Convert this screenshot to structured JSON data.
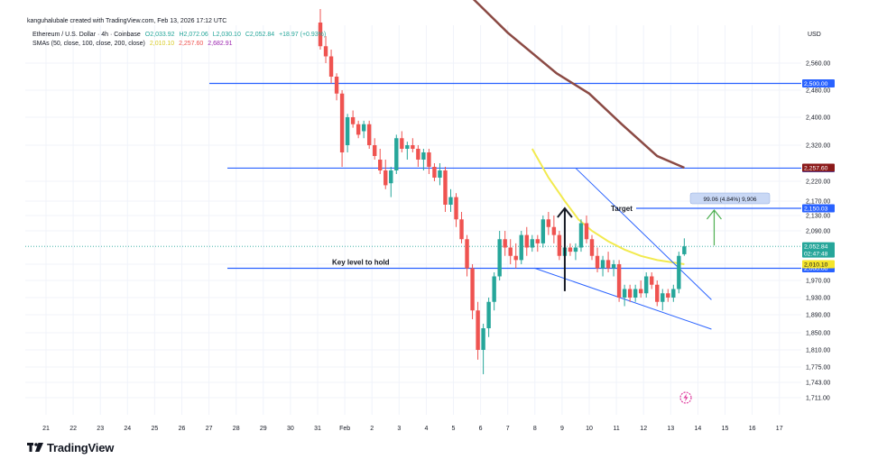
{
  "credit": "kanguhalubale created with TradingView.com, Feb 13, 2026 17:12 UTC",
  "legend": {
    "symbol": "Ethereum / U.S. Dollar · 4h · Coinbase",
    "ohlc": {
      "o": "O2,033.92",
      "h": "H2,072.06",
      "l": "L2,030.10",
      "c": "C2,052.84",
      "chg": "+18.97 (+0.93%)"
    },
    "sma_label": "SMAs (50, close, 100, close, 200, close)",
    "sma_values": [
      "2,010.10",
      "2,257.60",
      "2,682.91"
    ]
  },
  "currency": "USD",
  "brand": "TradingView",
  "colors": {
    "up": "#26a69a",
    "down": "#ef5350",
    "sma50": "#f2ea4f",
    "sma200": "#8b4a44",
    "level_line": "#2962ff",
    "target_arrow": "#4caf50",
    "price_tag": "#26a69a",
    "sma50_tag": "#f5e52b",
    "sma100_tag": "#8b1a1a",
    "level_tag": "#2962ff"
  },
  "chart_data": {
    "type": "candlestick",
    "x_ticks": [
      "21",
      "22",
      "23",
      "24",
      "25",
      "26",
      "27",
      "28",
      "29",
      "30",
      "31",
      "Feb",
      "2",
      "3",
      "4",
      "5",
      "6",
      "7",
      "8",
      "9",
      "10",
      "11",
      "12",
      "13",
      "14",
      "15",
      "16",
      "17"
    ],
    "y_ticks": [
      "2,560.00",
      "2,480.00",
      "2,400.00",
      "2,320.00",
      "2,220.00",
      "2,170.00",
      "2,130.00",
      "2,090.00",
      "2,010.00",
      "1,970.00",
      "1,930.00",
      "1,890.00",
      "1,850.00",
      "1,810.00",
      "1,775.00",
      "1,743.00",
      "1,711.00"
    ],
    "y_tick_values": [
      2560,
      2480,
      2400,
      2320,
      2220,
      2170,
      2130,
      2090,
      2010,
      1970,
      1930,
      1890,
      1850,
      1810,
      1775,
      1743,
      1711
    ],
    "horizontal_levels": [
      {
        "value": 2500,
        "label": "2,500.00"
      },
      {
        "value": 2256.4,
        "label": "2,256.40"
      },
      {
        "value": 2150.03,
        "label": "2,150.03",
        "annotation": "Target"
      },
      {
        "value": 2000,
        "label": "2,000.00",
        "annotation": "Key level to hold"
      }
    ],
    "price_tags": [
      {
        "value": 2257.6,
        "label": "2,257.60",
        "kind": "sma100"
      },
      {
        "value": 2052.84,
        "label": "2,052.84",
        "sublabel": "02:47:48",
        "kind": "price"
      },
      {
        "value": 2010.1,
        "label": "2,010.10",
        "kind": "sma50"
      }
    ],
    "measure_label": "99.06 (4.84%) 9,906",
    "candles_ohlc": [
      [
        0.1,
        2680,
        2720,
        2600,
        2610
      ],
      [
        0.3,
        2610,
        2640,
        2560,
        2580
      ],
      [
        0.5,
        2580,
        2600,
        2500,
        2520
      ],
      [
        0.7,
        2520,
        2530,
        2450,
        2470
      ],
      [
        0.9,
        2470,
        2480,
        2260,
        2300
      ],
      [
        1.1,
        2320,
        2410,
        2300,
        2400
      ],
      [
        1.3,
        2400,
        2420,
        2370,
        2380
      ],
      [
        1.5,
        2380,
        2390,
        2340,
        2350
      ],
      [
        1.7,
        2360,
        2390,
        2340,
        2380
      ],
      [
        1.9,
        2380,
        2390,
        2310,
        2320
      ],
      [
        2.1,
        2320,
        2340,
        2280,
        2290
      ],
      [
        2.3,
        2280,
        2310,
        2240,
        2250
      ],
      [
        2.5,
        2250,
        2280,
        2200,
        2210
      ],
      [
        2.7,
        2215,
        2260,
        2180,
        2250
      ],
      [
        2.9,
        2250,
        2350,
        2240,
        2340
      ],
      [
        3.1,
        2340,
        2360,
        2300,
        2310
      ],
      [
        3.3,
        2310,
        2330,
        2280,
        2320
      ],
      [
        3.5,
        2320,
        2340,
        2300,
        2310
      ],
      [
        3.7,
        2310,
        2320,
        2260,
        2280
      ],
      [
        3.9,
        2280,
        2310,
        2250,
        2300
      ],
      [
        4.1,
        2300,
        2310,
        2240,
        2260
      ],
      [
        4.3,
        2260,
        2270,
        2220,
        2230
      ],
      [
        4.5,
        2230,
        2270,
        2210,
        2250
      ],
      [
        4.7,
        2250,
        2260,
        2140,
        2160
      ],
      [
        4.9,
        2160,
        2200,
        2140,
        2180
      ],
      [
        5.1,
        2180,
        2190,
        2100,
        2120
      ],
      [
        5.3,
        2120,
        2140,
        2060,
        2070
      ],
      [
        5.5,
        2070,
        2080,
        1980,
        2000
      ],
      [
        5.7,
        2000,
        2010,
        1880,
        1900
      ],
      [
        5.9,
        1900,
        1920,
        1790,
        1810
      ],
      [
        6.1,
        1810,
        1870,
        1760,
        1860
      ],
      [
        6.3,
        1860,
        1930,
        1840,
        1920
      ],
      [
        6.5,
        1920,
        1990,
        1900,
        1980
      ],
      [
        6.7,
        1980,
        2090,
        1970,
        2070
      ],
      [
        6.9,
        2070,
        2090,
        2030,
        2050
      ],
      [
        7.1,
        2050,
        2070,
        2010,
        2030
      ],
      [
        7.3,
        2030,
        2060,
        2000,
        2020
      ],
      [
        7.5,
        2020,
        2090,
        2010,
        2080
      ],
      [
        7.7,
        2080,
        2100,
        2030,
        2050
      ],
      [
        7.9,
        2050,
        2080,
        2040,
        2070
      ],
      [
        8.1,
        2070,
        2080,
        2040,
        2060
      ],
      [
        8.3,
        2060,
        2130,
        2050,
        2120
      ],
      [
        8.5,
        2120,
        2140,
        2080,
        2100
      ],
      [
        8.7,
        2100,
        2130,
        2060,
        2080
      ],
      [
        8.9,
        2080,
        2090,
        2020,
        2030
      ],
      [
        9.1,
        2030,
        2070,
        2000,
        2050
      ],
      [
        9.3,
        2050,
        2060,
        2030,
        2040
      ],
      [
        9.5,
        2040,
        2060,
        2020,
        2050
      ],
      [
        9.7,
        2050,
        2120,
        2040,
        2110
      ],
      [
        9.9,
        2110,
        2130,
        2060,
        2070
      ],
      [
        10.1,
        2070,
        2080,
        2020,
        2030
      ],
      [
        10.3,
        2030,
        2050,
        1990,
        2000
      ],
      [
        10.5,
        2000,
        2030,
        1980,
        2020
      ],
      [
        10.7,
        2020,
        2040,
        1990,
        2000
      ],
      [
        10.9,
        2000,
        2020,
        1980,
        2010
      ],
      [
        11.1,
        2010,
        2020,
        1920,
        1930
      ],
      [
        11.3,
        1930,
        1960,
        1910,
        1950
      ],
      [
        11.5,
        1950,
        1960,
        1920,
        1930
      ],
      [
        11.7,
        1930,
        1960,
        1920,
        1950
      ],
      [
        11.9,
        1950,
        1970,
        1930,
        1940
      ],
      [
        12.1,
        1940,
        1990,
        1930,
        1980
      ],
      [
        12.3,
        1980,
        1990,
        1950,
        1960
      ],
      [
        12.5,
        1960,
        1970,
        1910,
        1920
      ],
      [
        12.7,
        1920,
        1950,
        1900,
        1940
      ],
      [
        12.9,
        1940,
        1950,
        1920,
        1930
      ],
      [
        13.1,
        1930,
        1960,
        1920,
        1950
      ],
      [
        13.3,
        1950,
        2040,
        1940,
        2030
      ],
      [
        13.5,
        2033.92,
        2072.06,
        2030.1,
        2052.84
      ]
    ],
    "sma50": [
      [
        7.9,
        2310
      ],
      [
        8.5,
        2230
      ],
      [
        9.1,
        2170
      ],
      [
        9.6,
        2120
      ],
      [
        10.1,
        2090
      ],
      [
        10.7,
        2065
      ],
      [
        11.3,
        2045
      ],
      [
        11.9,
        2030
      ],
      [
        12.5,
        2020
      ],
      [
        13.5,
        2010.1
      ]
    ],
    "sma100_visible": [
      [
        5.6,
        2760
      ],
      [
        7.0,
        2650
      ],
      [
        8.8,
        2530
      ],
      [
        10.0,
        2470
      ],
      [
        11.2,
        2380
      ],
      [
        12.5,
        2290
      ],
      [
        13.5,
        2257.6
      ]
    ],
    "trendlines": [
      {
        "from": [
          9.5,
          2256.4
        ],
        "to": [
          14.5,
          1925
        ],
        "name": "upper wedge"
      },
      {
        "from": [
          8.0,
          2000
        ],
        "to": [
          14.5,
          1858
        ],
        "name": "lower wedge"
      }
    ],
    "arrows": [
      {
        "from": [
          9.1,
          1945
        ],
        "to": [
          9.1,
          2150
        ],
        "color": "#131722"
      },
      {
        "from": [
          14.6,
          2055
        ],
        "to": [
          14.6,
          2145
        ],
        "color": "#4caf50"
      }
    ]
  }
}
